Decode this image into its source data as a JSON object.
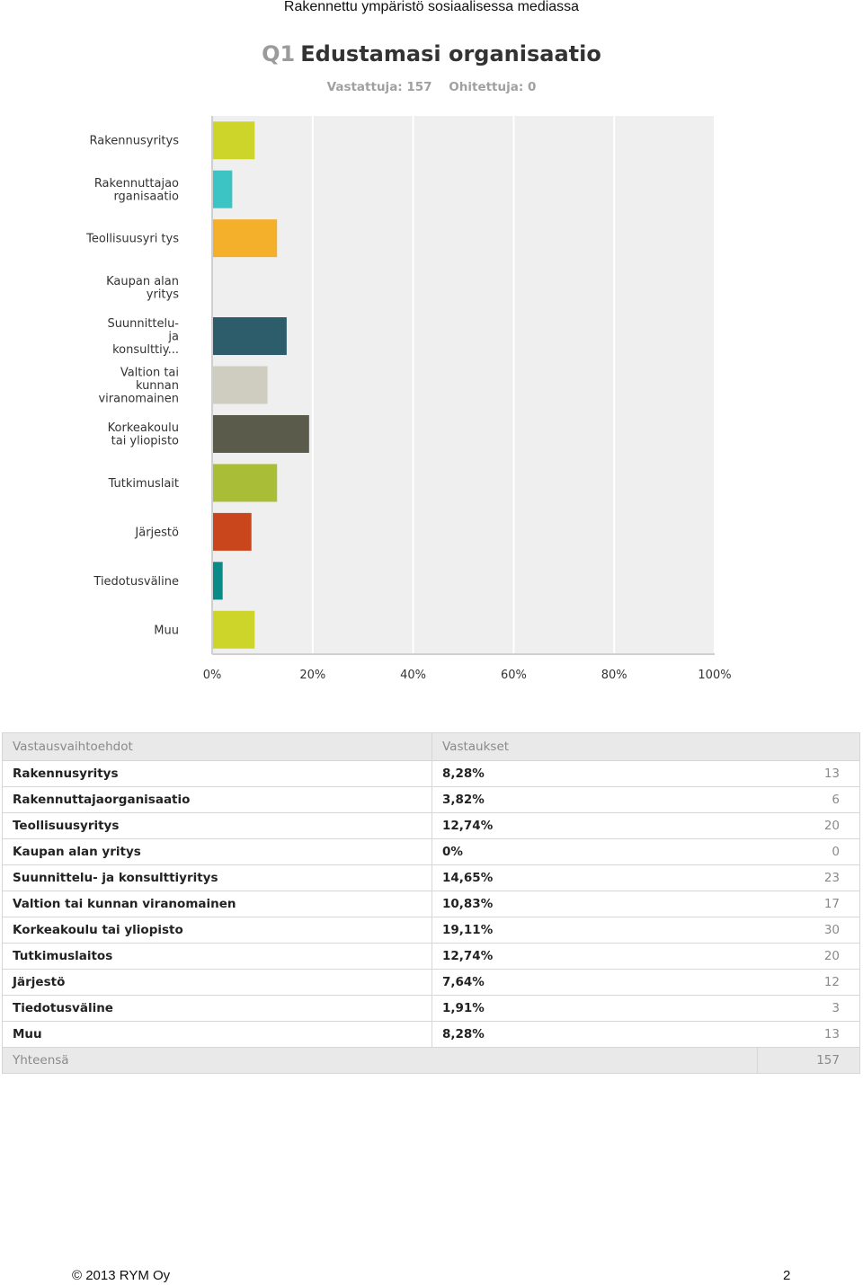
{
  "header": {
    "doc_title": "Rakennettu ympäristö sosiaalisessa mediassa"
  },
  "question": {
    "number": "Q1",
    "title": "Edustamasi organisaatio",
    "answered": "Vastattuja: 157",
    "skipped": "Ohitettuja: 0"
  },
  "chart_data": {
    "type": "bar",
    "orientation": "horizontal",
    "categories": [
      [
        "Rakennusyritys"
      ],
      [
        "Rakennuttajao",
        "rganisaatio"
      ],
      [
        "Teollisuusyri tys"
      ],
      [
        "Kaupan alan",
        "yritys"
      ],
      [
        "Suunnittelu-",
        "ja",
        "konsulttiy..."
      ],
      [
        "Valtion tai",
        "kunnan",
        "viranomainen"
      ],
      [
        "Korkeakoulu",
        "tai yliopisto"
      ],
      [
        "Tutkimuslait"
      ],
      [
        "Järjestö"
      ],
      [
        "Tiedotusväline"
      ],
      [
        "Muu"
      ]
    ],
    "values": [
      8.28,
      3.82,
      12.74,
      0,
      14.65,
      10.83,
      19.11,
      12.74,
      7.64,
      1.91,
      8.28
    ],
    "colors": [
      "#cdd52a",
      "#3cc3c4",
      "#f4b02a",
      "#bbbbbb",
      "#2d5d6b",
      "#cfcdbf",
      "#5b5b4c",
      "#a9bd37",
      "#c9461c",
      "#0b8b87",
      "#cdd52a"
    ],
    "xlim": [
      0,
      100
    ],
    "xticks": [
      "0%",
      "20%",
      "40%",
      "60%",
      "80%",
      "100%"
    ],
    "grid": true
  },
  "table": {
    "headers": [
      "Vastausvaihtoehdot",
      "Vastaukset"
    ],
    "rows": [
      {
        "option": "Rakennusyritys",
        "percent": "8,28%",
        "count": "13"
      },
      {
        "option": "Rakennuttajaorganisaatio",
        "percent": "3,82%",
        "count": "6"
      },
      {
        "option": "Teollisuusyritys",
        "percent": "12,74%",
        "count": "20"
      },
      {
        "option": "Kaupan alan yritys",
        "percent": "0%",
        "count": "0"
      },
      {
        "option": "Suunnittelu- ja konsulttiyritys",
        "percent": "14,65%",
        "count": "23"
      },
      {
        "option": "Valtion tai kunnan viranomainen",
        "percent": "10,83%",
        "count": "17"
      },
      {
        "option": "Korkeakoulu tai yliopisto",
        "percent": "19,11%",
        "count": "30"
      },
      {
        "option": "Tutkimuslaitos",
        "percent": "12,74%",
        "count": "20"
      },
      {
        "option": "Järjestö",
        "percent": "7,64%",
        "count": "12"
      },
      {
        "option": "Tiedotusväline",
        "percent": "1,91%",
        "count": "3"
      },
      {
        "option": "Muu",
        "percent": "8,28%",
        "count": "13"
      }
    ],
    "total_label": "Yhteensä",
    "total_count": "157"
  },
  "footer": {
    "copyright": "© 2013 RYM Oy",
    "page": "2"
  }
}
